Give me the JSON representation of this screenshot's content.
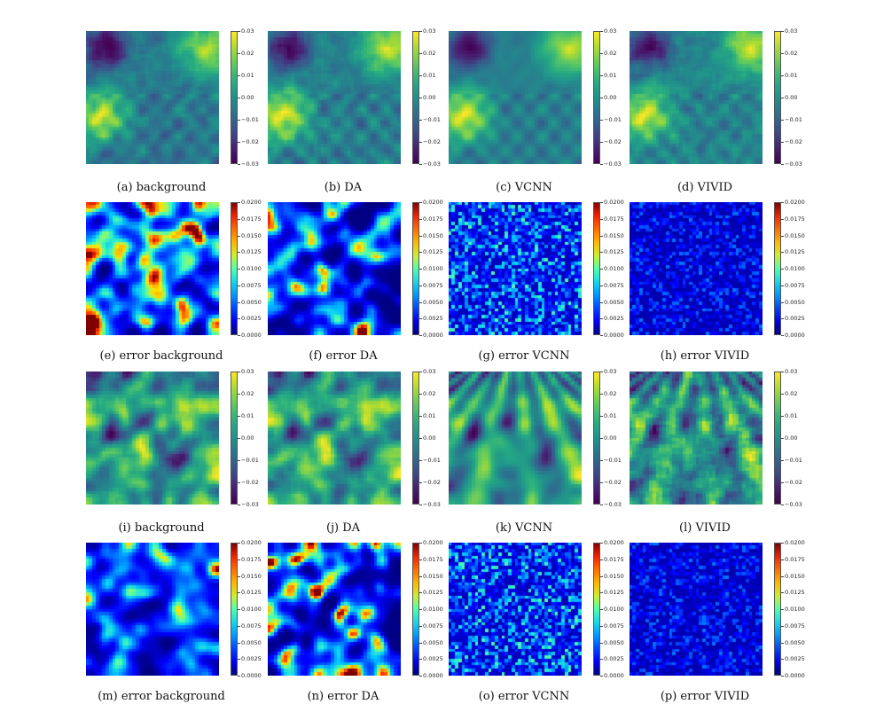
{
  "chart_data": [
    {
      "type": "heatmap",
      "caption": "(a) background",
      "colormap": "viridis",
      "colorbar_range": [
        -0.03,
        0.03
      ],
      "colorbar_ticks": [
        "0.03",
        "0.02",
        "0.01",
        "0.00",
        "−0.01",
        "−0.02",
        "−0.03"
      ]
    },
    {
      "type": "heatmap",
      "caption": "(b) DA",
      "colormap": "viridis",
      "colorbar_range": [
        -0.03,
        0.03
      ],
      "colorbar_ticks": [
        "0.03",
        "0.02",
        "0.01",
        "0.00",
        "−0.01",
        "−0.02",
        "−0.03"
      ]
    },
    {
      "type": "heatmap",
      "caption": "(c) VCNN",
      "colormap": "viridis",
      "colorbar_range": [
        -0.03,
        0.03
      ],
      "colorbar_ticks": [
        "0.03",
        "0.02",
        "0.01",
        "0.00",
        "−0.01",
        "−0.02",
        "−0.03"
      ]
    },
    {
      "type": "heatmap",
      "caption": "(d) VIVID",
      "colormap": "viridis",
      "colorbar_range": [
        -0.03,
        0.03
      ],
      "colorbar_ticks": [
        "0.03",
        "0.02",
        "0.01",
        "0.00",
        "−0.01",
        "−0.02",
        "−0.03"
      ]
    },
    {
      "type": "heatmap",
      "caption": "(e) error background",
      "colormap": "jet",
      "colorbar_range": [
        0,
        0.02
      ],
      "colorbar_ticks": [
        "0.0200",
        "0.0175",
        "0.0150",
        "0.0125",
        "0.0100",
        "0.0075",
        "0.0050",
        "0.0025",
        "0.0000"
      ]
    },
    {
      "type": "heatmap",
      "caption": "(f) error DA",
      "colormap": "jet",
      "colorbar_range": [
        0,
        0.02
      ],
      "colorbar_ticks": [
        "0.0200",
        "0.0175",
        "0.0150",
        "0.0125",
        "0.0100",
        "0.0075",
        "0.0050",
        "0.0025",
        "0.0000"
      ]
    },
    {
      "type": "heatmap",
      "caption": "(g) error VCNN",
      "colormap": "jet",
      "colorbar_range": [
        0,
        0.02
      ],
      "colorbar_ticks": [
        "0.0200",
        "0.0175",
        "0.0150",
        "0.0125",
        "0.0100",
        "0.0075",
        "0.0050",
        "0.0025",
        "0.0000"
      ]
    },
    {
      "type": "heatmap",
      "caption": "(h) error VIVID",
      "colormap": "jet",
      "colorbar_range": [
        0,
        0.02
      ],
      "colorbar_ticks": [
        "0.0200",
        "0.0175",
        "0.0150",
        "0.0125",
        "0.0100",
        "0.0075",
        "0.0050",
        "0.0025",
        "0.0000"
      ]
    },
    {
      "type": "heatmap",
      "caption": "(i) background",
      "colormap": "viridis",
      "colorbar_range": [
        -0.03,
        0.03
      ],
      "colorbar_ticks": [
        "0.03",
        "0.02",
        "0.01",
        "0.00",
        "−0.01",
        "−0.02",
        "−0.03"
      ]
    },
    {
      "type": "heatmap",
      "caption": "(j) DA",
      "colormap": "viridis",
      "colorbar_range": [
        -0.03,
        0.03
      ],
      "colorbar_ticks": [
        "0.03",
        "0.02",
        "0.01",
        "0.00",
        "−0.01",
        "−0.02",
        "−0.03"
      ]
    },
    {
      "type": "heatmap",
      "caption": "(k) VCNN",
      "colormap": "viridis",
      "colorbar_range": [
        -0.03,
        0.03
      ],
      "colorbar_ticks": [
        "0.03",
        "0.02",
        "0.01",
        "0.00",
        "−0.01",
        "−0.02",
        "−0.03"
      ]
    },
    {
      "type": "heatmap",
      "caption": "(l) VIVID",
      "colormap": "viridis",
      "colorbar_range": [
        -0.03,
        0.03
      ],
      "colorbar_ticks": [
        "0.03",
        "0.02",
        "0.01",
        "0.00",
        "−0.01",
        "−0.02",
        "−0.03"
      ]
    },
    {
      "type": "heatmap",
      "caption": "(m) error background",
      "colormap": "jet",
      "colorbar_range": [
        0,
        0.02
      ],
      "colorbar_ticks": [
        "0.0200",
        "0.0175",
        "0.0150",
        "0.0125",
        "0.0100",
        "0.0075",
        "0.0050",
        "0.0025",
        "0.0000"
      ]
    },
    {
      "type": "heatmap",
      "caption": "(n) error DA",
      "colormap": "jet",
      "colorbar_range": [
        0,
        0.02
      ],
      "colorbar_ticks": [
        "0.0200",
        "0.0175",
        "0.0150",
        "0.0125",
        "0.0100",
        "0.0075",
        "0.0050",
        "0.0025",
        "0.0000"
      ]
    },
    {
      "type": "heatmap",
      "caption": "(o) error VCNN",
      "colormap": "jet",
      "colorbar_range": [
        0,
        0.02
      ],
      "colorbar_ticks": [
        "0.0200",
        "0.0175",
        "0.0150",
        "0.0125",
        "0.0100",
        "0.0075",
        "0.0050",
        "0.0025",
        "0.0000"
      ]
    },
    {
      "type": "heatmap",
      "caption": "(p) error VIVID",
      "colormap": "jet",
      "colorbar_range": [
        0,
        0.02
      ],
      "colorbar_ticks": [
        "0.0200",
        "0.0175",
        "0.0150",
        "0.0125",
        "0.0100",
        "0.0075",
        "0.0050",
        "0.0025",
        "0.0000"
      ]
    }
  ]
}
